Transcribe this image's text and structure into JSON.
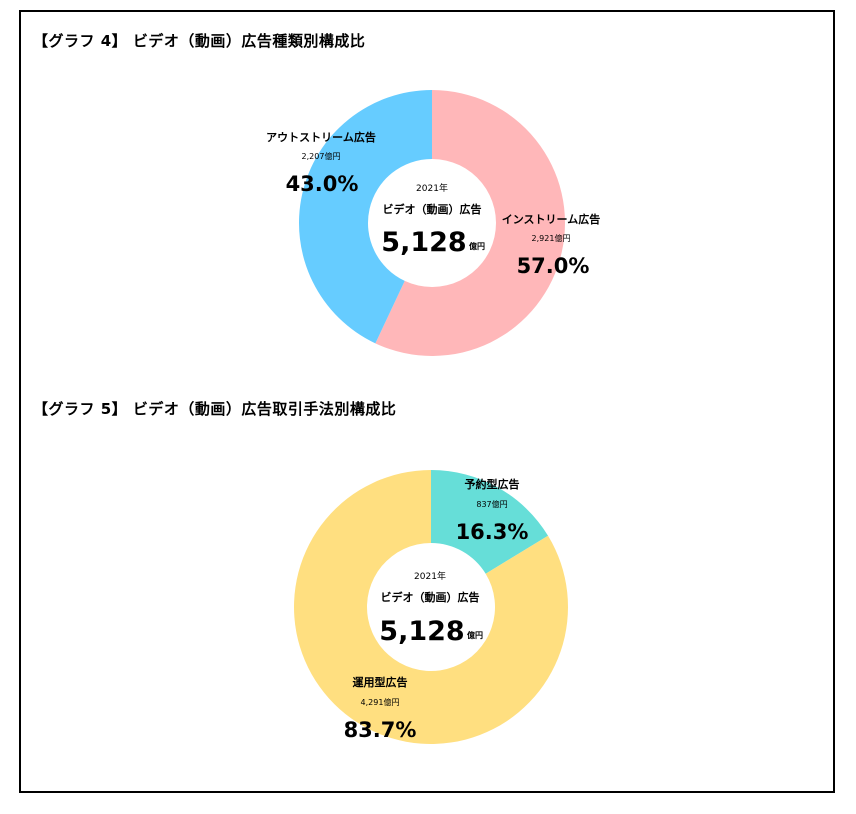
{
  "chart_data": [
    {
      "type": "pie",
      "title": "【グラフ 4】 ビデオ（動画）広告種類別構成比",
      "center": {
        "year": "2021年",
        "label": "ビデオ（動画）広告",
        "total": "5,128",
        "unit": "億円"
      },
      "categories": [
        "インストリーム広告",
        "アウトストリーム広告"
      ],
      "amounts": [
        "2,921億円",
        "2,207億円"
      ],
      "percent_labels": [
        "57.0%",
        "43.0%"
      ],
      "values": [
        57.0,
        43.0
      ],
      "colors": [
        "#FFB7B9",
        "#66CCFF"
      ]
    },
    {
      "type": "pie",
      "title": "【グラフ 5】 ビデオ（動画）広告取引手法別構成比",
      "center": {
        "year": "2021年",
        "label": "ビデオ（動画）広告",
        "total": "5,128",
        "unit": "億円"
      },
      "categories": [
        "予約型広告",
        "運用型広告"
      ],
      "amounts": [
        "837億円",
        "4,291億円"
      ],
      "percent_labels": [
        "16.3%",
        "83.7%"
      ],
      "values": [
        16.3,
        83.7
      ],
      "colors": [
        "#66DED8",
        "#FFDF80"
      ]
    }
  ]
}
